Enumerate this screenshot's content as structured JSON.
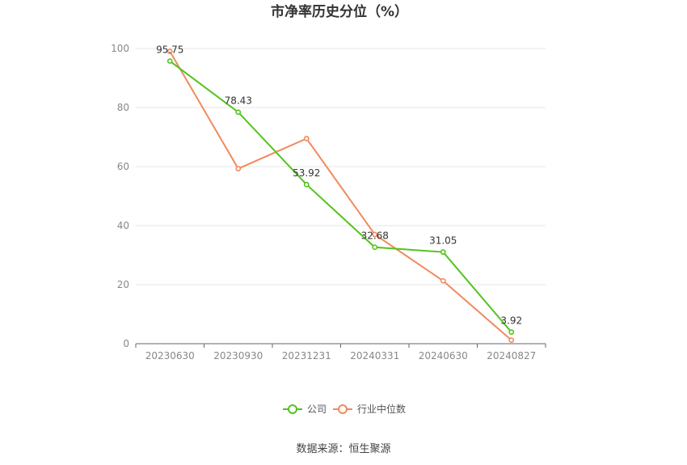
{
  "chart_data": {
    "type": "line",
    "title": "市净率历史分位（%）",
    "categories": [
      "20230630",
      "20230930",
      "20231231",
      "20240331",
      "20240630",
      "20240827"
    ],
    "series": [
      {
        "name": "公司",
        "color": "#52c41a",
        "values": [
          95.75,
          78.43,
          53.92,
          32.68,
          31.05,
          3.92
        ],
        "labels": [
          "95.75",
          "78.43",
          "53.92",
          "32.68",
          "31.05",
          "3.92"
        ]
      },
      {
        "name": "行业中位数",
        "color": "#f08a5d",
        "values": [
          99.0,
          59.3,
          69.5,
          37.0,
          21.3,
          1.2
        ]
      }
    ],
    "ylim": [
      0,
      100
    ],
    "yticks": [
      0,
      20,
      40,
      60,
      80,
      100
    ],
    "grid": true,
    "legend": "bottom-center"
  },
  "source": "数据来源：恒生聚源"
}
